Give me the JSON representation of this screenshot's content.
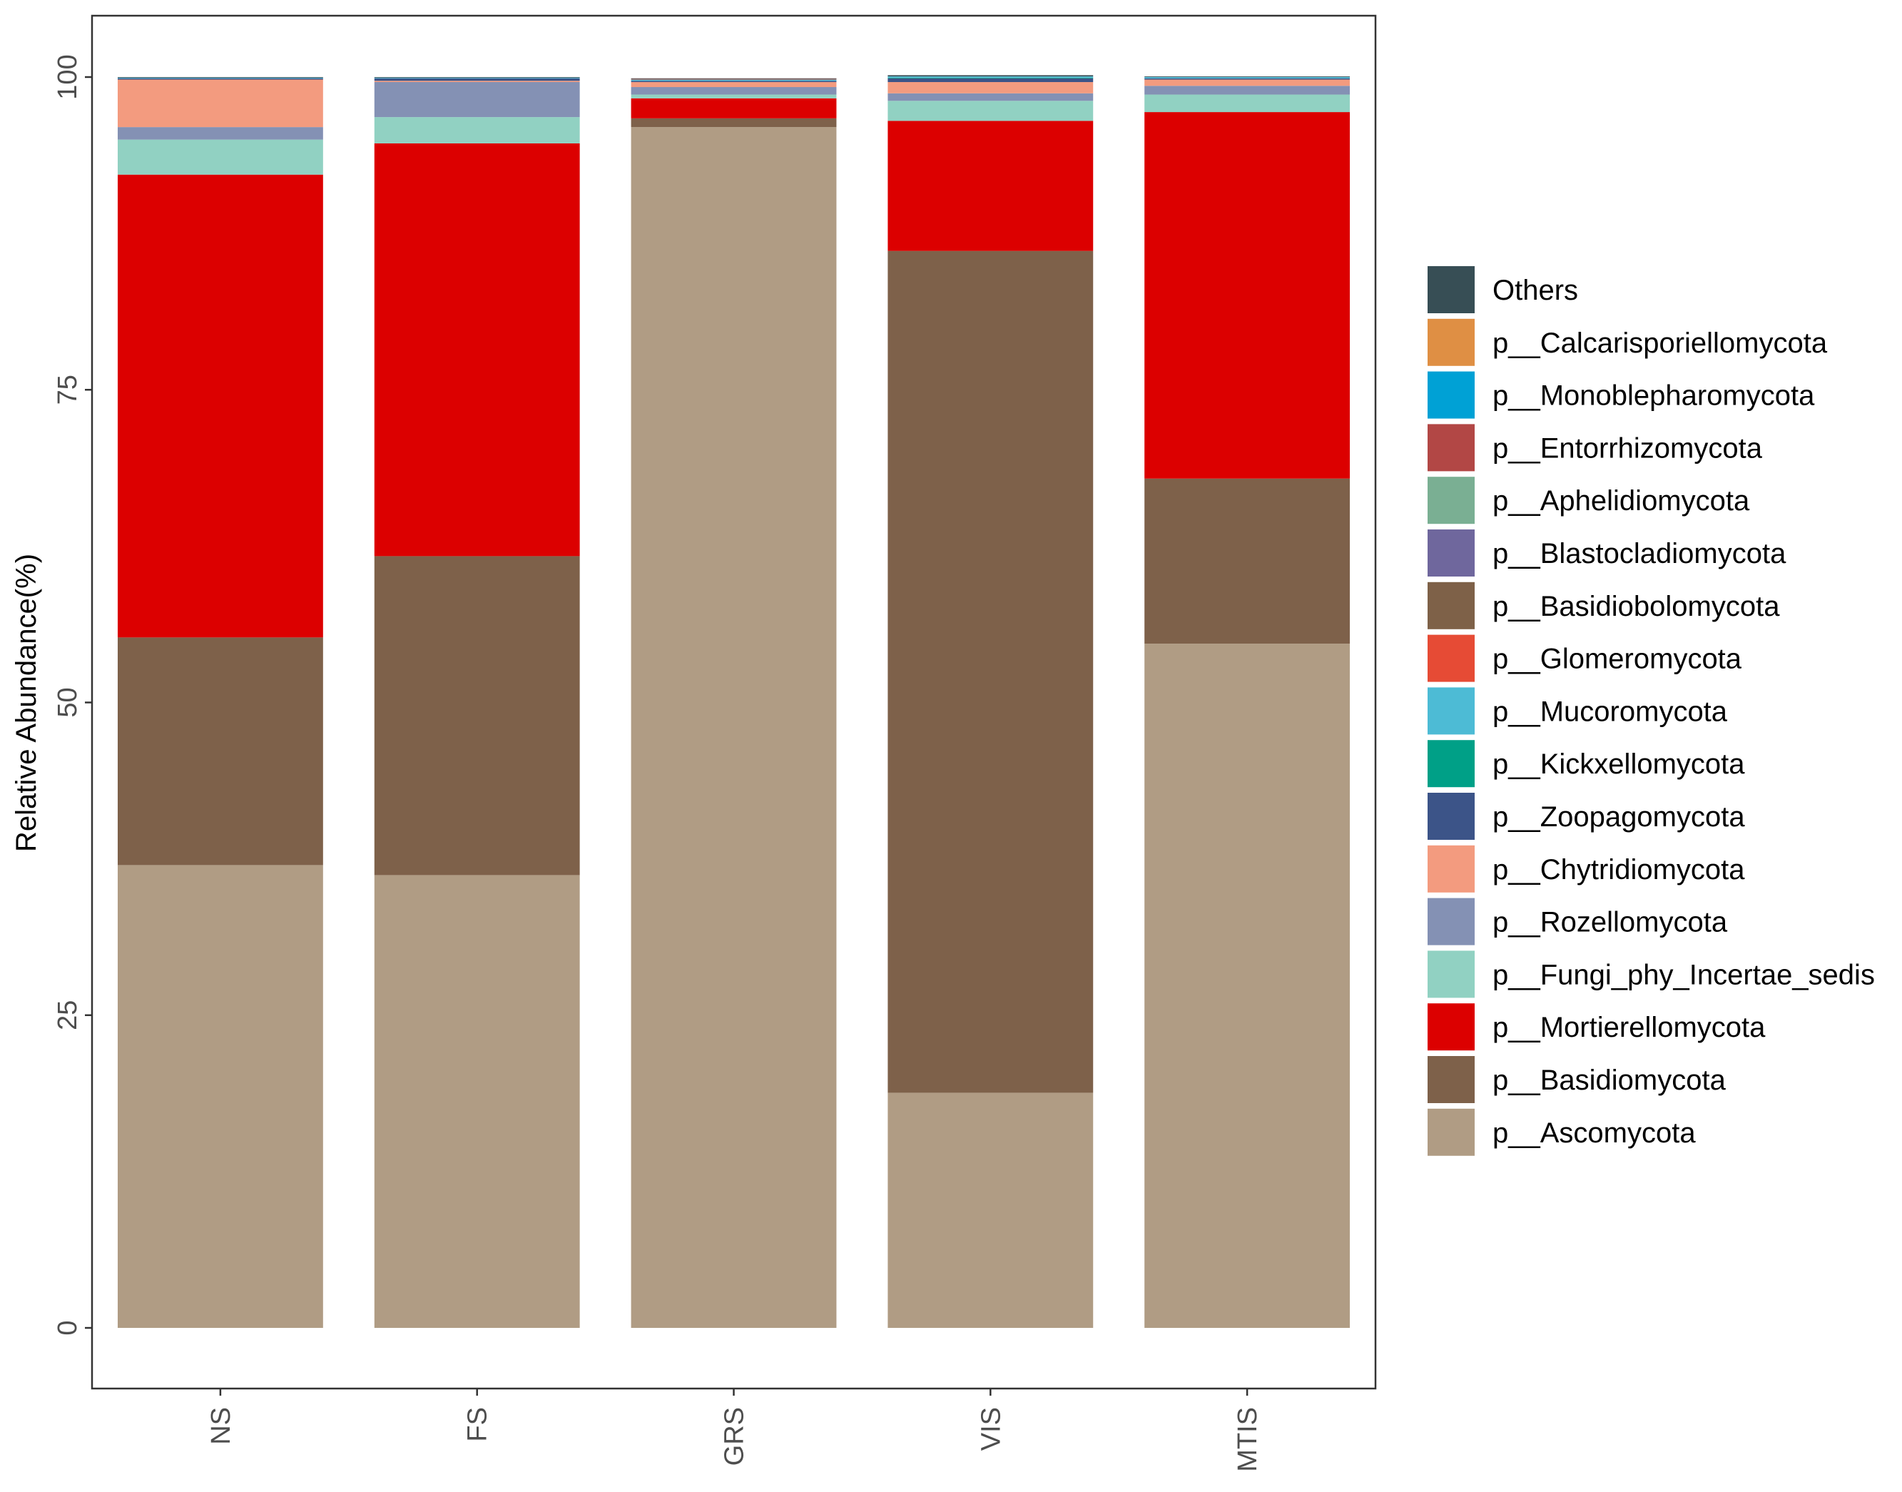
{
  "chart_data": {
    "type": "bar",
    "stacked": true,
    "title": "",
    "xlabel": "",
    "ylabel": "Relative Abundance(%)",
    "ylim": [
      0,
      104
    ],
    "yticks": [
      0,
      25,
      50,
      75,
      100
    ],
    "yticks_text": [
      "0",
      "25",
      "50",
      "75",
      "100"
    ],
    "grid": false,
    "legend_position": "right",
    "categories": [
      "NS",
      "FS",
      "GRS",
      "VIS",
      "MTIS"
    ],
    "series": [
      {
        "name": "p__Ascomycota",
        "color": "#B09C84",
        "values": [
          37.0,
          36.2,
          96.0,
          18.8,
          54.7
        ]
      },
      {
        "name": "p__Basidiomycota",
        "color": "#7E614A",
        "values": [
          18.2,
          25.5,
          0.7,
          67.3,
          13.2
        ]
      },
      {
        "name": "p__Mortierellomycota",
        "color": "#DC0000",
        "values": [
          37.0,
          33.0,
          1.6,
          10.4,
          29.3
        ]
      },
      {
        "name": "p__Fungi_phy_Incertae_sedis",
        "color": "#91D1C2",
        "values": [
          2.8,
          2.1,
          0.3,
          1.6,
          1.4
        ]
      },
      {
        "name": "p__Rozellomycota",
        "color": "#8491B4",
        "values": [
          1.0,
          2.8,
          0.6,
          0.6,
          0.7
        ]
      },
      {
        "name": "p__Chytridiomycota",
        "color": "#F39B7F",
        "values": [
          3.8,
          0.1,
          0.4,
          0.9,
          0.5
        ]
      },
      {
        "name": "p__Zoopagomycota",
        "color": "#3C5488",
        "values": [
          0.1,
          0.2,
          0.1,
          0.3,
          0.1
        ]
      },
      {
        "name": "p__Kickxellomycota",
        "color": "#00A087",
        "values": [
          0.0,
          0.0,
          0.0,
          0.05,
          0.0
        ]
      },
      {
        "name": "p__Mucoromycota",
        "color": "#4DBBD5",
        "values": [
          0.05,
          0.05,
          0.1,
          0.1,
          0.1
        ]
      },
      {
        "name": "p__Glomeromycota",
        "color": "#E64B35",
        "values": [
          0.0,
          0.0,
          0.05,
          0.0,
          0.0
        ]
      },
      {
        "name": "p__Basidiobolomycota",
        "color": "#7E6148",
        "values": [
          0.0,
          0.0,
          0.0,
          0.0,
          0.0
        ]
      },
      {
        "name": "p__Blastocladiomycota",
        "color": "#6F679D",
        "values": [
          0.0,
          0.0,
          0.0,
          0.0,
          0.0
        ]
      },
      {
        "name": "p__Aphelidiomycota",
        "color": "#7AAF93",
        "values": [
          0.0,
          0.0,
          0.0,
          0.0,
          0.0
        ]
      },
      {
        "name": "p__Entorrhizomycota",
        "color": "#B24745",
        "values": [
          0.0,
          0.0,
          0.0,
          0.0,
          0.0
        ]
      },
      {
        "name": "p__Monoblepharomycota",
        "color": "#00A1D5",
        "values": [
          0.0,
          0.0,
          0.0,
          0.0,
          0.0
        ]
      },
      {
        "name": "p__Calcarisporiellomycota",
        "color": "#DF8F44",
        "values": [
          0.0,
          0.0,
          0.0,
          0.0,
          0.0
        ]
      },
      {
        "name": "Others",
        "color": "#374E55",
        "values": [
          0.05,
          0.05,
          0.05,
          0.1,
          0.05
        ]
      }
    ],
    "legend_order": [
      "Others",
      "p__Calcarisporiellomycota",
      "p__Monoblepharomycota",
      "p__Entorrhizomycota",
      "p__Aphelidiomycota",
      "p__Blastocladiomycota",
      "p__Basidiobolomycota",
      "p__Glomeromycota",
      "p__Mucoromycota",
      "p__Kickxellomycota",
      "p__Zoopagomycota",
      "p__Chytridiomycota",
      "p__Rozellomycota",
      "p__Fungi_phy_Incertae_sedis",
      "p__Mortierellomycota",
      "p__Basidiomycota",
      "p__Ascomycota"
    ]
  }
}
